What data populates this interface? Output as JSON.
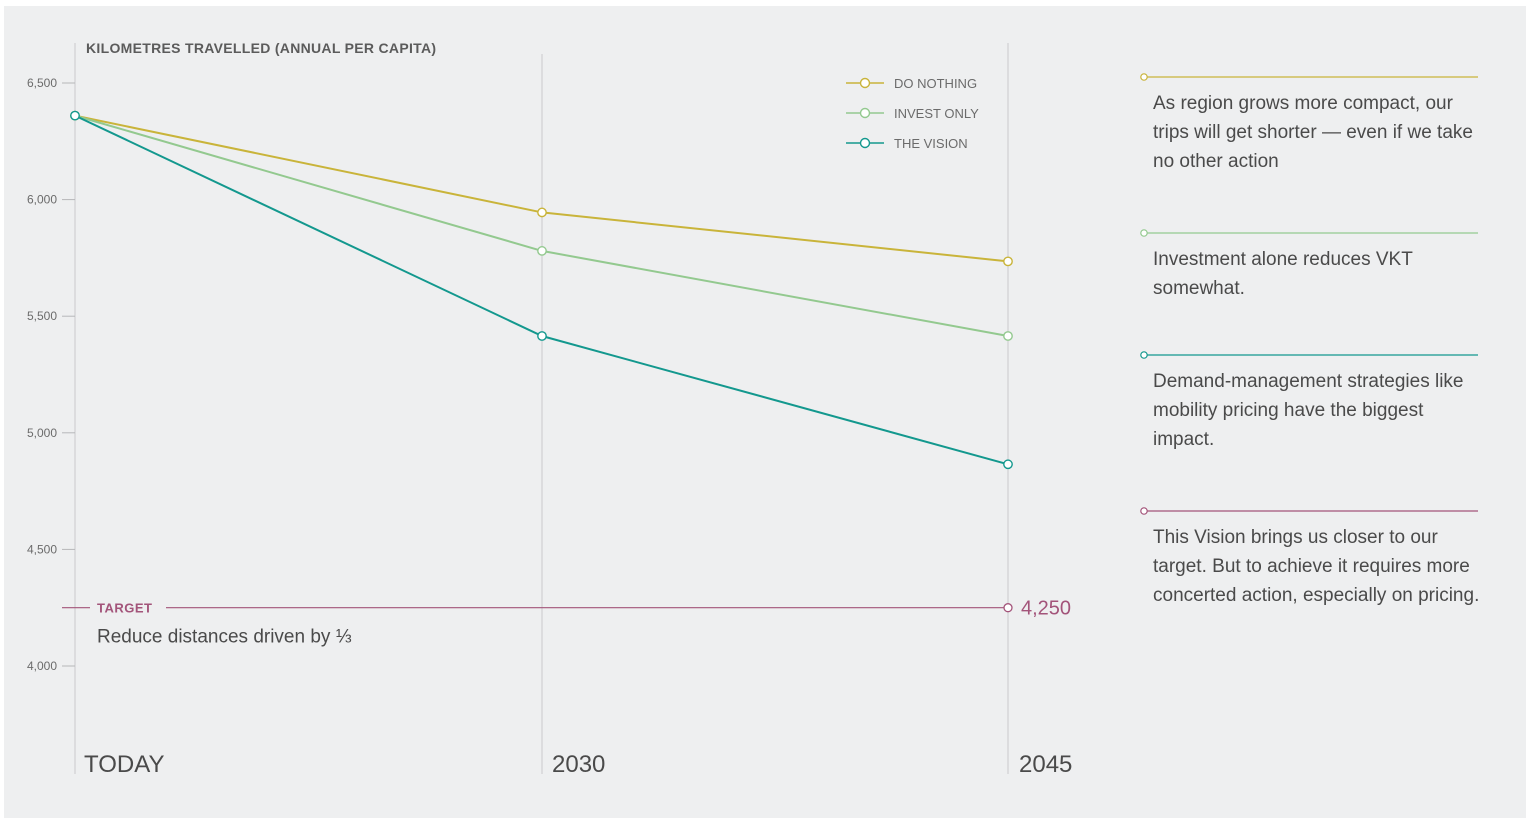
{
  "chart_data": {
    "type": "line",
    "title": "KILOMETRES TRAVELLED (ANNUAL PER CAPITA)",
    "categories": [
      "TODAY",
      "2030",
      "2045"
    ],
    "series": [
      {
        "name": "DO NOTHING",
        "color": "#c9b43a",
        "values": [
          6360,
          5945,
          5735
        ]
      },
      {
        "name": "INVEST ONLY",
        "color": "#93c98f",
        "values": [
          6360,
          5780,
          5415
        ]
      },
      {
        "name": "THE VISION",
        "color": "#13988e",
        "values": [
          6360,
          5415,
          4865
        ]
      }
    ],
    "yticks": [
      4000,
      4500,
      5000,
      5500,
      6000,
      6500
    ],
    "ytick_labels": [
      "4,000",
      "4,500",
      "5,000",
      "5,500",
      "6,000",
      "6,500"
    ],
    "ylim": [
      3560,
      6700
    ],
    "grid": "vertical lines at categories",
    "legend_position": "top-right",
    "target": {
      "label": "TARGET",
      "description": "Reduce distances driven by ⅓",
      "value": 4250,
      "value_label": "4,250",
      "color": "#a3547a"
    }
  },
  "annotations": [
    {
      "series": "DO NOTHING",
      "color": "#c9b43a",
      "text": "As region grows more compact, our trips will get shorter — even if we take no other action"
    },
    {
      "series": "INVEST ONLY",
      "color": "#93c98f",
      "text": "Investment alone reduces VKT somewhat."
    },
    {
      "series": "THE VISION",
      "color": "#13988e",
      "text": "Demand-management strategies like mobility pricing have the biggest impact."
    },
    {
      "series": "TARGET",
      "color": "#a3547a",
      "text": "This Vision brings us closer to our target. But to achieve it requires more concerted action, especially on pricing."
    }
  ]
}
